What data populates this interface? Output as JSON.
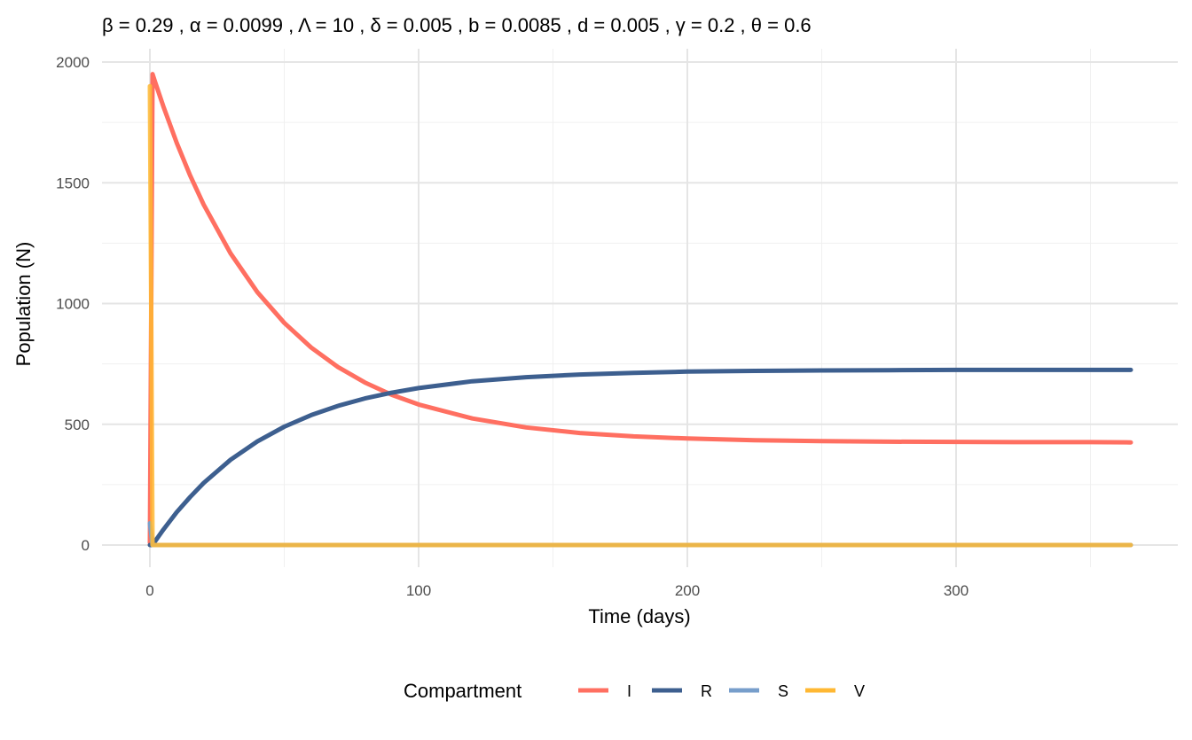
{
  "chart_data": {
    "type": "line",
    "title": "β = 0.29 , α = 0.0099 , Λ = 10 , δ =  0.005 , b =  0.0085 , d =  0.005 , γ =  0.2 , θ =  0.6",
    "xlabel": "Time (days)",
    "ylabel": "Population (N)",
    "xlim": [
      -18,
      383
    ],
    "ylim": [
      -90,
      2090
    ],
    "xticks": [
      0,
      100,
      200,
      300
    ],
    "yticks": [
      0,
      500,
      1000,
      1500,
      2000
    ],
    "grid": true,
    "legend": {
      "title": "Compartment",
      "position": "bottom"
    },
    "x": [
      0,
      1,
      2,
      5,
      10,
      15,
      20,
      30,
      40,
      50,
      60,
      70,
      80,
      90,
      100,
      120,
      140,
      160,
      180,
      200,
      225,
      250,
      275,
      300,
      325,
      350,
      365
    ],
    "series": [
      {
        "name": "I",
        "color": "#FF6F61",
        "values": [
          10,
          1950,
          1915,
          1816,
          1665,
          1530,
          1410,
          1208,
          1047,
          920,
          818,
          737,
          673,
          622,
          582,
          524,
          487,
          464,
          450,
          441,
          434,
          430,
          428,
          427,
          426,
          426,
          425
        ]
      },
      {
        "name": "R",
        "color": "#3D5F8F",
        "values": [
          0,
          0,
          17,
          64,
          136,
          199,
          257,
          353,
          429,
          490,
          538,
          576,
          607,
          631,
          650,
          678,
          695,
          706,
          713,
          718,
          721,
          723,
          724,
          725,
          725,
          725,
          725
        ]
      },
      {
        "name": "S",
        "color": "#779ECB",
        "values": [
          90,
          0,
          0,
          0,
          0,
          0,
          0,
          0,
          0,
          0,
          0,
          0,
          0,
          0,
          0,
          0,
          0,
          0,
          0,
          0,
          0,
          0,
          0,
          0,
          0,
          0,
          0
        ]
      },
      {
        "name": "V",
        "color": "#FFB833",
        "values": [
          1900,
          0,
          0,
          0,
          0,
          0,
          0,
          0,
          0,
          0,
          0,
          0,
          0,
          0,
          0,
          0,
          0,
          0,
          0,
          0,
          0,
          0,
          0,
          0,
          0,
          0,
          0
        ]
      }
    ]
  }
}
